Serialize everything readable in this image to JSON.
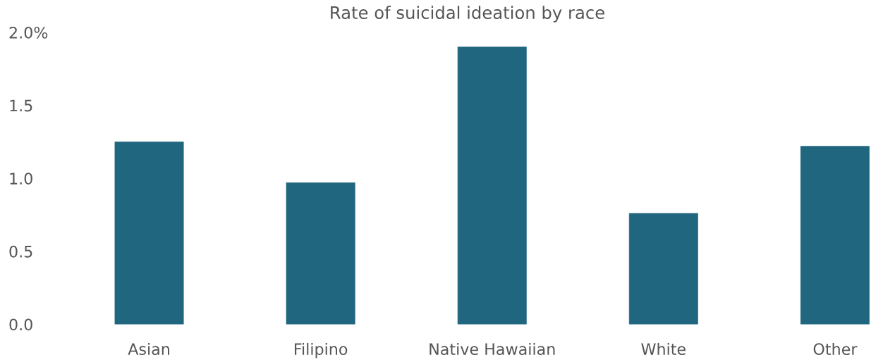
{
  "chart_data": {
    "type": "bar",
    "title": "Rate of suicidal ideation by race",
    "categories": [
      "Asian",
      "Filipino",
      "Native Hawaiian",
      "White",
      "Other"
    ],
    "values": [
      1.25,
      0.97,
      1.9,
      0.76,
      1.22
    ],
    "color": "#20667f",
    "ylim": [
      0,
      2.0
    ],
    "yticks": [
      {
        "value": 0,
        "label": "0.0"
      },
      {
        "value": 0.5,
        "label": "0.5"
      },
      {
        "value": 1.0,
        "label": "1.0"
      },
      {
        "value": 1.5,
        "label": "1.5"
      },
      {
        "value": 2.0,
        "label": "2.0%"
      }
    ],
    "grid": false,
    "legend": false
  }
}
